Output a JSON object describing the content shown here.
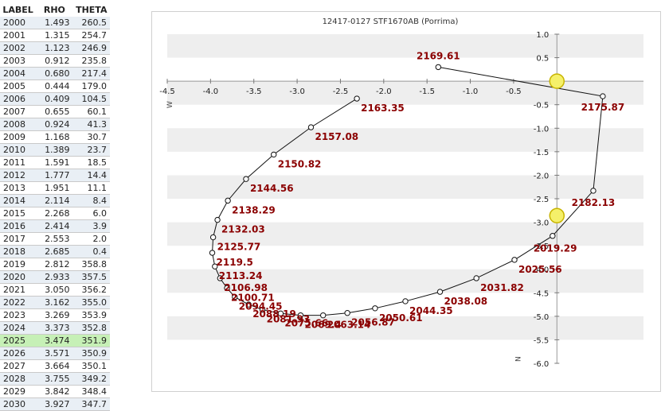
{
  "table": {
    "headers": [
      "LABEL",
      "RHO",
      "THETA"
    ],
    "highlight_label": "2025",
    "rows": [
      [
        "2000",
        "1.493",
        "260.5"
      ],
      [
        "2001",
        "1.315",
        "254.7"
      ],
      [
        "2002",
        "1.123",
        "246.9"
      ],
      [
        "2003",
        "0.912",
        "235.8"
      ],
      [
        "2004",
        "0.680",
        "217.4"
      ],
      [
        "2005",
        "0.444",
        "179.0"
      ],
      [
        "2006",
        "0.409",
        "104.5"
      ],
      [
        "2007",
        "0.655",
        "60.1"
      ],
      [
        "2008",
        "0.924",
        "41.3"
      ],
      [
        "2009",
        "1.168",
        "30.7"
      ],
      [
        "2010",
        "1.389",
        "23.7"
      ],
      [
        "2011",
        "1.591",
        "18.5"
      ],
      [
        "2012",
        "1.777",
        "14.4"
      ],
      [
        "2013",
        "1.951",
        "11.1"
      ],
      [
        "2014",
        "2.114",
        "8.4"
      ],
      [
        "2015",
        "2.268",
        "6.0"
      ],
      [
        "2016",
        "2.414",
        "3.9"
      ],
      [
        "2017",
        "2.553",
        "2.0"
      ],
      [
        "2018",
        "2.685",
        "0.4"
      ],
      [
        "2019",
        "2.812",
        "358.8"
      ],
      [
        "2020",
        "2.933",
        "357.5"
      ],
      [
        "2021",
        "3.050",
        "356.2"
      ],
      [
        "2022",
        "3.162",
        "355.0"
      ],
      [
        "2023",
        "3.269",
        "353.9"
      ],
      [
        "2024",
        "3.373",
        "352.8"
      ],
      [
        "2025",
        "3.474",
        "351.9"
      ],
      [
        "2026",
        "3.571",
        "350.9"
      ],
      [
        "2027",
        "3.664",
        "350.1"
      ],
      [
        "2028",
        "3.755",
        "349.2"
      ],
      [
        "2029",
        "3.842",
        "348.4"
      ],
      [
        "2030",
        "3.927",
        "347.7"
      ]
    ]
  },
  "chart_data": {
    "type": "scatter",
    "title": "12417-0127 STF1670AB (Porrima)",
    "xlim": [
      -4.5,
      1.0
    ],
    "ylim": [
      -6.0,
      1.0
    ],
    "x_ticks": [
      -4.5,
      -4.0,
      -3.5,
      -3.0,
      -2.5,
      -2.0,
      -1.5,
      -1.0,
      -0.5
    ],
    "x_tick_labels": [
      "-4.5",
      "-4.0",
      "-3.5",
      "-3.0",
      "-2.5",
      "-2.0",
      "-1.5",
      "-1.0",
      "-0.5"
    ],
    "y_ticks": [
      1.0,
      0.5,
      0.0,
      -0.5,
      -1.0,
      -1.5,
      -2.0,
      -2.5,
      -3.0,
      -3.5,
      -4.0,
      -4.5,
      -5.0,
      -5.5,
      -6.0
    ],
    "y_tick_labels": [
      "1.0",
      "0.5",
      "",
      "-0.5",
      "-1.0",
      "-1.5",
      "-2.0",
      "-2.5",
      "-3.0",
      "-3.5",
      "-4.0",
      "-4.5",
      "-5.0",
      "-5.5",
      "-6.0"
    ],
    "x_axis_marker": "W",
    "y_axis_marker": "N",
    "grid": "alternating horizontal bands",
    "line_color": "#111111",
    "label_color": "#8b0000",
    "primary_color": "#f5f06a",
    "series": [
      {
        "points": [
          {
            "x": -2.31,
            "y": -0.37,
            "label": "2163.35"
          },
          {
            "x": -2.84,
            "y": -0.98,
            "label": "2157.08"
          },
          {
            "x": -3.27,
            "y": -1.56,
            "label": "2150.82"
          },
          {
            "x": -3.59,
            "y": -2.08,
            "label": "2144.56"
          },
          {
            "x": -3.8,
            "y": -2.54,
            "label": "2138.29"
          },
          {
            "x": -3.92,
            "y": -2.95,
            "label": "2132.03"
          },
          {
            "x": -3.97,
            "y": -3.32,
            "label": "2125.77"
          },
          {
            "x": -3.98,
            "y": -3.65,
            "label": "2119.5"
          },
          {
            "x": -3.95,
            "y": -3.94,
            "label": "2113.24"
          },
          {
            "x": -3.89,
            "y": -4.19,
            "label": "2106.98"
          },
          {
            "x": -3.81,
            "y": -4.4,
            "label": "2100.71"
          },
          {
            "x": -3.72,
            "y": -4.59,
            "label": "2094.45"
          },
          {
            "x": -3.56,
            "y": -4.75,
            "label": "2088.19"
          },
          {
            "x": -3.4,
            "y": -4.86,
            "label": "2081.93"
          },
          {
            "x": -3.19,
            "y": -4.94,
            "label": "2075.66"
          },
          {
            "x": -2.96,
            "y": -4.98,
            "label": "2069.4"
          },
          {
            "x": -2.7,
            "y": -4.98,
            "label": "2063.14"
          },
          {
            "x": -2.42,
            "y": -4.93,
            "label": "2056.87"
          },
          {
            "x": -2.1,
            "y": -4.83,
            "label": "2050.61"
          },
          {
            "x": -1.75,
            "y": -4.68,
            "label": "2044.35"
          },
          {
            "x": -1.35,
            "y": -4.48,
            "label": "2038.08"
          },
          {
            "x": -0.93,
            "y": -4.19,
            "label": "2031.82"
          },
          {
            "x": -0.49,
            "y": -3.8,
            "label": "2025.56"
          },
          {
            "x": -0.05,
            "y": -3.29,
            "label": "2019.29"
          },
          {
            "x": 0.42,
            "y": -2.33,
            "label": "2182.13"
          },
          {
            "x": 0.53,
            "y": -0.32,
            "label": "2175.87"
          },
          {
            "x": -1.37,
            "y": 0.3,
            "label": "2169.61"
          }
        ]
      }
    ],
    "primary_star": {
      "x": 0.0,
      "y": 0.0
    },
    "secondary_star": {
      "x": 0.0,
      "y": -2.86
    }
  }
}
